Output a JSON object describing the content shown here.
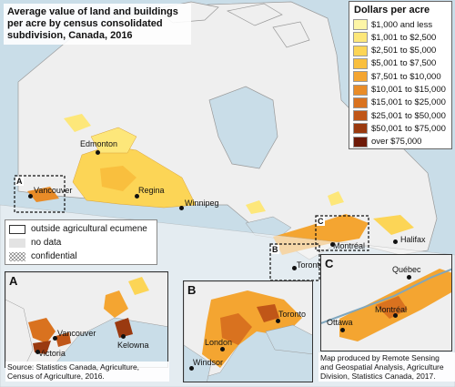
{
  "title": "Average value of land and buildings per acre by census consolidated subdivision, Canada, 2016",
  "legend": {
    "title": "Dollars per acre",
    "items": [
      {
        "label": "$1,000 and less",
        "color": "#fdf5a6"
      },
      {
        "label": "$1,001 to $2,500",
        "color": "#fde77a"
      },
      {
        "label": "$2,501 to $5,000",
        "color": "#fcd556"
      },
      {
        "label": "$5,001 to $7,500",
        "color": "#f9bf3e"
      },
      {
        "label": "$7,501 to $10,000",
        "color": "#f4a531"
      },
      {
        "label": "$10,001 to $15,000",
        "color": "#e98c28"
      },
      {
        "label": "$15,001 to $25,000",
        "color": "#d9721f"
      },
      {
        "label": "$25,001 to $50,000",
        "color": "#c05618"
      },
      {
        "label": "$50,001 to $75,000",
        "color": "#9a3a10"
      },
      {
        "label": "over $75,000",
        "color": "#6e1a08"
      }
    ]
  },
  "key": {
    "outside": "outside agricultural ecumene",
    "nodata": "no data",
    "confidential": "confidential"
  },
  "cities": {
    "edmonton": "Edmonton",
    "vancouver": "Vancouver",
    "regina": "Regina",
    "winnipeg": "Winnipeg",
    "toronto": "Toronto",
    "montreal": "Montréal",
    "halifax": "Halifax"
  },
  "box_labels": {
    "a": "A",
    "b": "B",
    "c": "C"
  },
  "insets": {
    "a": {
      "letter": "A",
      "cities": {
        "vancouver": "Vancouver",
        "victoria": "Victoria",
        "kelowna": "Kelowna"
      }
    },
    "b": {
      "letter": "B",
      "cities": {
        "toronto": "Toronto",
        "london": "London",
        "windsor": "Windsor"
      }
    },
    "c": {
      "letter": "C",
      "cities": {
        "quebec": "Québec",
        "montreal": "Montréal",
        "ottawa": "Ottawa"
      }
    }
  },
  "source": "Source: Statistics Canada, Agriculture, Census of Agriculture, 2016.",
  "credit": "Map produced by Remote Sensing and Geospatial Analysis, Agriculture Division, Statistics Canada, 2017."
}
